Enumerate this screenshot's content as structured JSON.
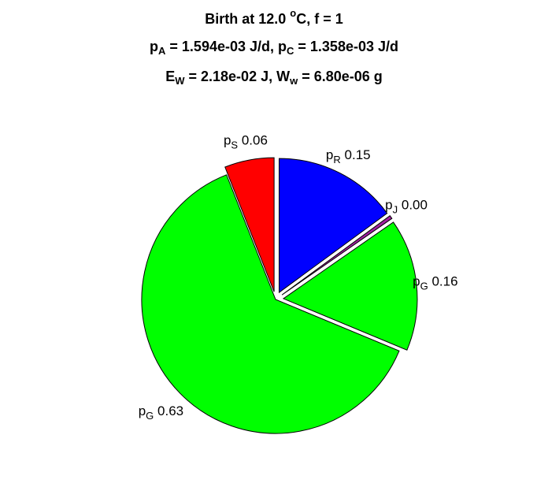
{
  "chart_data": {
    "type": "pie",
    "title": [
      [
        {
          "text": "Birth at 12.0 "
        },
        {
          "text": "o",
          "shift": "sup"
        },
        {
          "text": "C, f = 1"
        }
      ],
      [
        {
          "text": "p"
        },
        {
          "text": "A",
          "shift": "sub"
        },
        {
          "text": " = 1.594e-03 J/d, p"
        },
        {
          "text": "C",
          "shift": "sub"
        },
        {
          "text": " = 1.358e-03 J/d"
        }
      ],
      [
        {
          "text": "E"
        },
        {
          "text": "W",
          "shift": "sub"
        },
        {
          "text": " = 2.18e-02 J, W"
        },
        {
          "text": "w",
          "shift": "sub"
        },
        {
          "text": " = 6.80e-06 g"
        }
      ]
    ],
    "categories": [
      {
        "text": "p",
        "sub": "R"
      },
      {
        "text": "p",
        "sub": "J"
      },
      {
        "text": "p",
        "sub": "G"
      },
      {
        "text": "p",
        "sub": "G"
      },
      {
        "text": "p",
        "sub": "S"
      }
    ],
    "values": [
      0.15,
      0.004,
      0.16,
      0.63,
      0.06
    ],
    "value_labels": [
      "0.15",
      "0.00",
      "0.16",
      "0.63",
      "0.06"
    ],
    "colors": [
      "#0000ff",
      "#a020a0",
      "#00ff00",
      "#00ff00",
      "#ff0000"
    ],
    "explode": [
      1,
      1,
      1,
      0,
      1
    ]
  }
}
